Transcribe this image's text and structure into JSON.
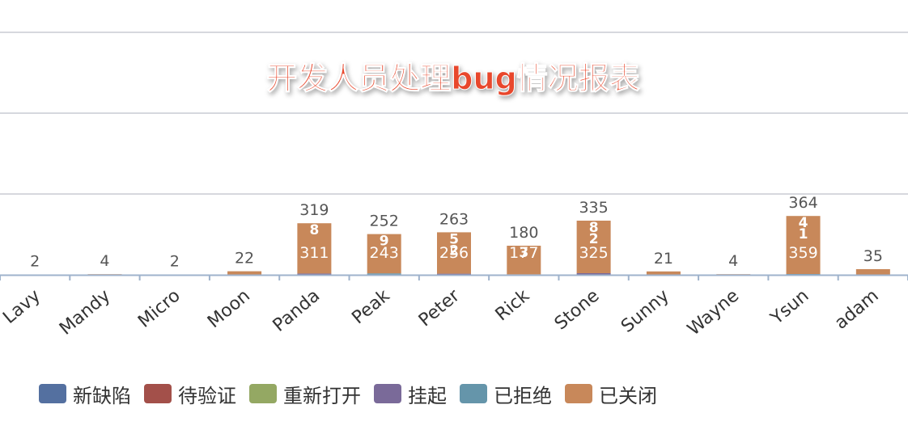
{
  "chart_data": {
    "type": "bar",
    "stacked": true,
    "title": "开发人员处理bug情况报表",
    "categories": [
      "Lavy",
      "Mandy",
      "Micro",
      "Moon",
      "Panda",
      "Peak",
      "Peter",
      "Rick",
      "Stone",
      "Sunny",
      "Wayne",
      "Ysun",
      "adam"
    ],
    "series": [
      {
        "name": "新缺陷",
        "color": "#5470a0",
        "values": [
          0,
          0,
          0,
          0,
          0,
          0,
          2,
          0,
          2,
          0,
          0,
          0,
          0
        ]
      },
      {
        "name": "待验证",
        "color": "#a3504a",
        "values": [
          0,
          0,
          0,
          0,
          0,
          0,
          0,
          0,
          0,
          0,
          0,
          0,
          0
        ]
      },
      {
        "name": "重新打开",
        "color": "#94a863",
        "values": [
          0,
          0,
          0,
          0,
          0,
          0,
          0,
          0,
          0,
          0,
          0,
          0,
          0
        ]
      },
      {
        "name": "挂起",
        "color": "#7a6a99",
        "values": [
          0,
          0,
          0,
          0,
          8,
          0,
          5,
          3,
          8,
          0,
          0,
          1,
          0
        ]
      },
      {
        "name": "已拒绝",
        "color": "#6595aa",
        "values": [
          0,
          0,
          0,
          0,
          0,
          9,
          0,
          0,
          0,
          0,
          0,
          4,
          0
        ]
      },
      {
        "name": "已关闭",
        "color": "#c8885a",
        "values": [
          2,
          4,
          2,
          22,
          311,
          243,
          256,
          177,
          325,
          21,
          4,
          359,
          35
        ]
      }
    ],
    "totals": [
      2,
      4,
      2,
      22,
      319,
      252,
      263,
      180,
      335,
      21,
      4,
      364,
      35
    ],
    "ylim": [
      0,
      2000
    ],
    "grid": true,
    "legend": "bottom"
  }
}
